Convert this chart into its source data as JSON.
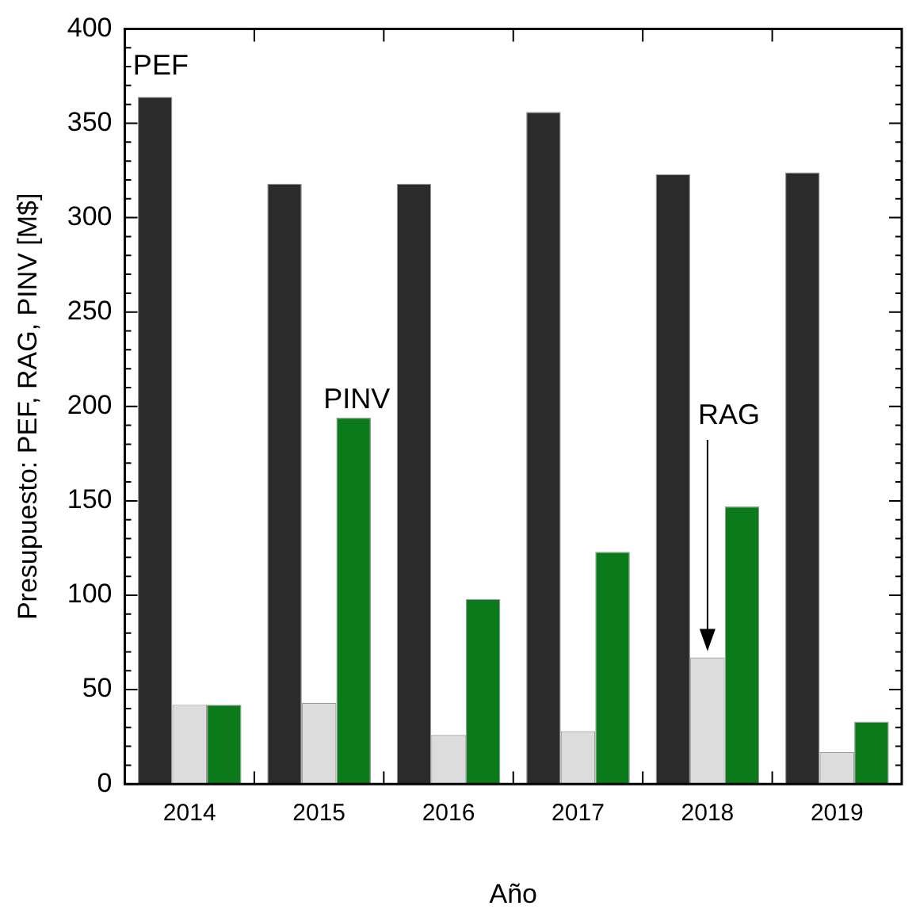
{
  "chart_data": {
    "type": "bar",
    "xlabel": "Año",
    "ylabel": "Presupuesto: PEF, RAG, PINV [M$]",
    "categories": [
      "2014",
      "2015",
      "2016",
      "2017",
      "2018",
      "2019"
    ],
    "series": [
      {
        "name": "PEF",
        "color": "#2b2b2b",
        "values": [
          364,
          318,
          318,
          356,
          323,
          324
        ]
      },
      {
        "name": "RAG",
        "color": "#dcdcdc",
        "values": [
          42,
          43,
          26,
          28,
          67,
          17
        ]
      },
      {
        "name": "PINV",
        "color": "#0a7a1a",
        "values": [
          42,
          194,
          98,
          123,
          147,
          33
        ]
      }
    ],
    "ylim": [
      0,
      400
    ],
    "yticks": [
      0,
      {
        "value": 10,
        "label": null
      },
      {
        "value": 20,
        "label": null
      },
      {
        "value": 30,
        "label": null
      },
      {
        "value": 40,
        "label": null
      },
      50,
      {
        "value": 60,
        "label": null
      },
      {
        "value": 70,
        "label": null
      },
      {
        "value": 80,
        "label": null
      },
      {
        "value": 90,
        "label": null
      },
      100,
      {
        "value": 110,
        "label": null
      },
      {
        "value": 120,
        "label": null
      },
      {
        "value": 130,
        "label": null
      },
      {
        "value": 140,
        "label": null
      },
      150,
      {
        "value": 160,
        "label": null
      },
      {
        "value": 170,
        "label": null
      },
      {
        "value": 180,
        "label": null
      },
      {
        "value": 190,
        "label": null
      },
      200,
      {
        "value": 210,
        "label": null
      },
      {
        "value": 220,
        "label": null
      },
      {
        "value": 230,
        "label": null
      },
      {
        "value": 240,
        "label": null
      },
      250,
      {
        "value": 260,
        "label": null
      },
      {
        "value": 270,
        "label": null
      },
      {
        "value": 280,
        "label": null
      },
      {
        "value": 290,
        "label": null
      },
      300,
      {
        "value": 310,
        "label": null
      },
      {
        "value": 320,
        "label": null
      },
      {
        "value": 330,
        "label": null
      },
      {
        "value": 340,
        "label": null
      },
      350,
      {
        "value": 360,
        "label": null
      },
      {
        "value": 370,
        "label": null
      },
      {
        "value": 380,
        "label": null
      },
      {
        "value": 390,
        "label": null
      },
      400
    ],
    "grid": false,
    "legend": false
  }
}
